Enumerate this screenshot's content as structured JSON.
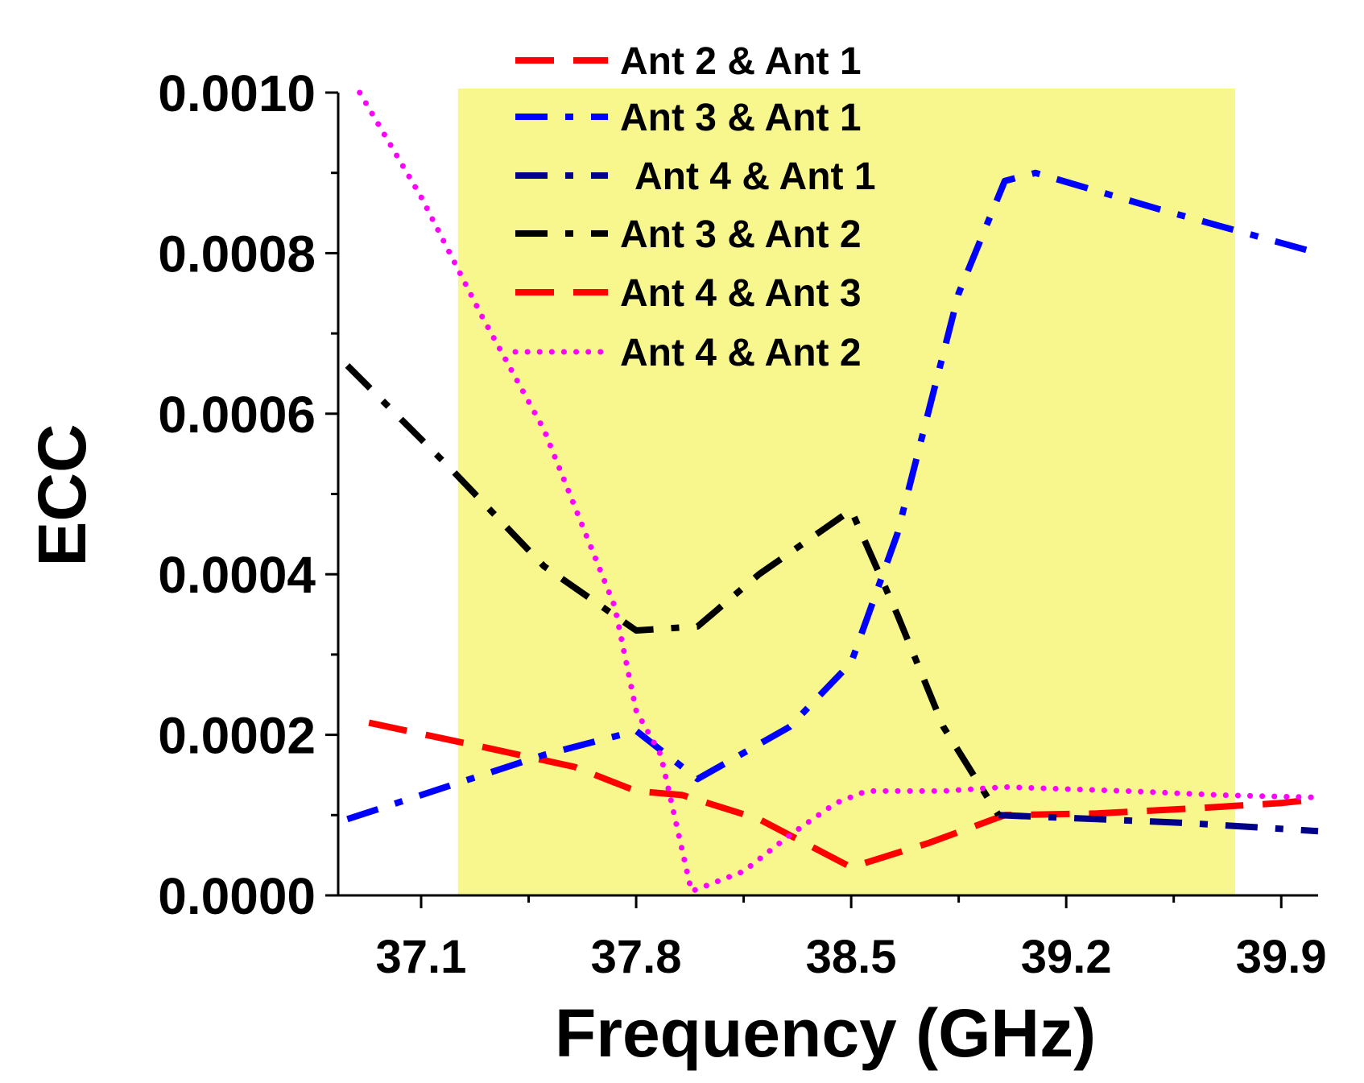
{
  "chart_data": {
    "type": "line",
    "title": "",
    "xlabel": "Frequency (GHz)",
    "ylabel": "ECC",
    "xlim": [
      36.83,
      40.02
    ],
    "ylim": [
      0.0,
      0.001
    ],
    "xticks": [
      37.1,
      37.8,
      38.5,
      39.2,
      39.9
    ],
    "xtick_labels": [
      "37.1",
      "37.8",
      "38.5",
      "39.2",
      "39.9"
    ],
    "yticks": [
      0.0,
      0.0002,
      0.0004,
      0.0006,
      0.0008,
      0.001
    ],
    "ytick_labels": [
      "0.0000",
      "0.0002",
      "0.0004",
      "0.0006",
      "0.0008",
      "0.0010"
    ],
    "highlight_band": {
      "x_start": 37.22,
      "x_end": 39.75,
      "color": "#f7f78e"
    },
    "grid": false,
    "legend_position": "top-center",
    "series": [
      {
        "name": "Ant 2 & Ant 1",
        "color": "#ff0000",
        "dash": "long-dash",
        "x": [
          36.93,
          37.3,
          37.6,
          37.8,
          37.95,
          38.2,
          38.35,
          38.5,
          38.75,
          39.0,
          39.3,
          39.6,
          39.9,
          40.02
        ],
        "y": [
          0.000215,
          0.000185,
          0.00016,
          0.00013,
          0.000125,
          9.5e-05,
          6.5e-05,
          3.5e-05,
          6.5e-05,
          0.0001,
          0.000102,
          0.000108,
          0.000115,
          0.00012
        ]
      },
      {
        "name": "Ant 3 & Ant 1",
        "color": "#0000ff",
        "dash": "dash-dot",
        "x": [
          36.86,
          37.1,
          37.5,
          37.8,
          38.0,
          38.3,
          38.5,
          38.65,
          38.85,
          39.0,
          39.1,
          39.5,
          40.02
        ],
        "y": [
          9.5e-05,
          0.000125,
          0.000175,
          0.000205,
          0.000145,
          0.00021,
          0.00029,
          0.00045,
          0.00075,
          0.00089,
          0.0009,
          0.000855,
          0.0008
        ]
      },
      {
        "name": "Ant 4 & Ant 1",
        "color": "#00008b",
        "dash": "dash-dot",
        "x": [
          38.98,
          39.3,
          39.6,
          40.02
        ],
        "y": [
          0.0001,
          9.5e-05,
          9e-05,
          8e-05
        ]
      },
      {
        "name": "Ant 3 & Ant 2",
        "color": "#000000",
        "dash": "dash-dot",
        "x": [
          36.86,
          37.2,
          37.5,
          37.8,
          38.0,
          38.2,
          38.5,
          38.65,
          38.8,
          38.98
        ],
        "y": [
          0.00066,
          0.00053,
          0.00041,
          0.00033,
          0.000335,
          0.0004,
          0.00048,
          0.00035,
          0.00021,
          0.0001
        ]
      },
      {
        "name": "Ant 4 & Ant 3",
        "color": "#ff0000",
        "dash": "long-dash",
        "x": [],
        "y": []
      },
      {
        "name": "Ant 4 & Ant 2",
        "color": "#ff00ff",
        "dash": "dot",
        "x": [
          36.9,
          37.1,
          37.3,
          37.5,
          37.73,
          37.8,
          37.88,
          37.98,
          38.15,
          38.3,
          38.45,
          38.55,
          38.8,
          39.0,
          39.4,
          39.7,
          40.02
        ],
        "y": [
          0.001,
          0.00087,
          0.00072,
          0.00058,
          0.00036,
          0.00023,
          0.000175,
          5e-06,
          3e-05,
          7.5e-05,
          0.000115,
          0.00013,
          0.00013,
          0.000135,
          0.00013,
          0.000125,
          0.000122
        ]
      }
    ]
  }
}
